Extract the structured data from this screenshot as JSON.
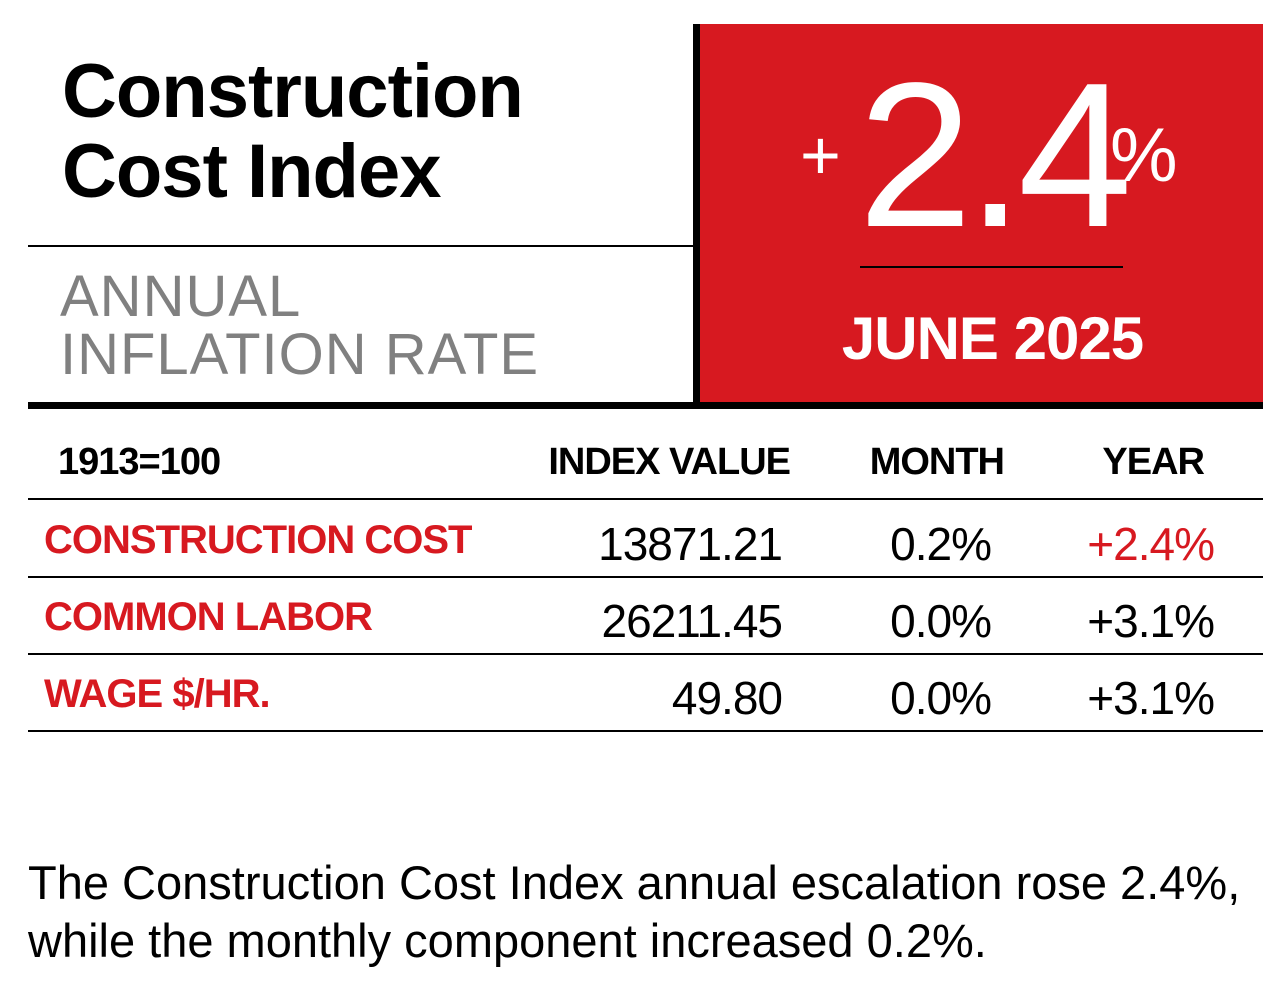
{
  "title_line1": "Construction",
  "title_line2": "Cost Index",
  "subtitle_line1": "ANNUAL",
  "subtitle_line2": "INFLATION RATE",
  "highlight": {
    "sign": "+",
    "value": "2.4",
    "percent": "%",
    "date": "JUNE 2025",
    "box_color": "#d71920"
  },
  "table": {
    "headers": {
      "base": "1913=100",
      "index_value": "INDEX VALUE",
      "month": "MONTH",
      "year": "YEAR"
    },
    "rows": [
      {
        "label": "CONSTRUCTION COST",
        "index_value": "13871.21",
        "month": "0.2%",
        "year": "+2.4%"
      },
      {
        "label": "COMMON LABOR",
        "index_value": "26211.45",
        "month": "0.0%",
        "year": "+3.1%"
      },
      {
        "label": "WAGE $/HR.",
        "index_value": "49.80",
        "month": "0.0%",
        "year": "+3.1%"
      }
    ],
    "accent_color": "#d71920"
  },
  "footer_text": "The Construction Cost Index annual escalation rose 2.4%, while the monthly component increased 0.2%."
}
